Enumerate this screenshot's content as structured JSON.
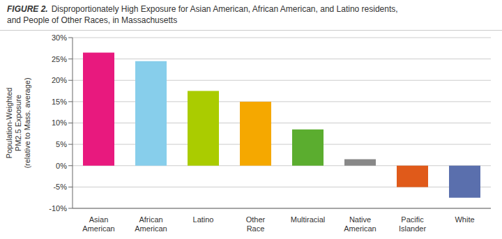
{
  "chart_data": {
    "type": "bar",
    "title": "FIGURE 2.",
    "subtitle": "Disproportionately High Exposure for Asian American, African American, and Latino residents,\nand People of Other Races, in Massachusetts",
    "categories": [
      "Asian\nAmerican",
      "African\nAmerican",
      "Latino",
      "Other\nRace",
      "Multiracial",
      "Native\nAmerican",
      "Pacific\nIslander",
      "White"
    ],
    "values": [
      26.5,
      24.5,
      17.5,
      15.0,
      8.5,
      1.5,
      -5.0,
      -7.5
    ],
    "colors": [
      "#E8197E",
      "#87CEEB",
      "#AACC00",
      "#F5A800",
      "#5BAD2F",
      "#888888",
      "#E05A1A",
      "#5A6FAD"
    ],
    "ylabel": "Population-Weighted\nPM2.5 Exposure\n(relative to Mass. average)",
    "ylim": [
      -10,
      30
    ],
    "yticks": [
      {
        "value": -10,
        "label": "-10%"
      },
      {
        "value": -5,
        "label": "-5%"
      },
      {
        "value": 0,
        "label": "0%"
      },
      {
        "value": 5,
        "label": "5%"
      },
      {
        "value": 10,
        "label": "10%"
      },
      {
        "value": 15,
        "label": "15%"
      },
      {
        "value": 20,
        "label": "20%"
      },
      {
        "value": 25,
        "label": "25%"
      },
      {
        "value": 30,
        "label": "30%"
      }
    ],
    "grid": true
  }
}
